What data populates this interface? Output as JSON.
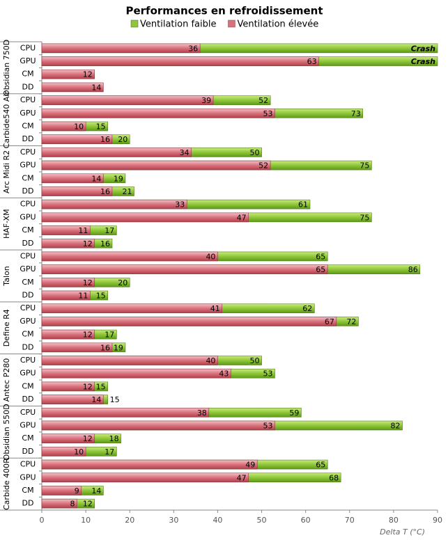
{
  "chart_data": {
    "type": "bar",
    "title": "Performances en refroidissement",
    "x_label": "Delta T (°C)",
    "groups": [
      "Obsidian 750D",
      "Carbide540 Air",
      "Arc Midi R2",
      "HAF-XM",
      "Talon",
      "Define R4",
      "Antec P280",
      "Obsidian 550D",
      "Carbide 400R"
    ],
    "categories": [
      "CPU",
      "GPU",
      "CM",
      "DD",
      "CPU",
      "GPU",
      "CM",
      "DD",
      "CPU",
      "GPU",
      "CM",
      "DD",
      "CPU",
      "GPU",
      "CM",
      "DD",
      "CPU",
      "GPU",
      "CM",
      "DD",
      "CPU",
      "GPU",
      "CM",
      "DD",
      "CPU",
      "GPU",
      "CM",
      "DD",
      "CPU",
      "GPU",
      "CM",
      "DD",
      "CPU",
      "GPU",
      "CM",
      "DD"
    ],
    "series": [
      {
        "name": "Ventilation faible",
        "color": "#8fc63a",
        "values": [
          null,
          null,
          null,
          null,
          52,
          73,
          15,
          20,
          50,
          75,
          19,
          21,
          61,
          75,
          17,
          16,
          65,
          86,
          20,
          15,
          62,
          72,
          17,
          19,
          50,
          53,
          15,
          15,
          59,
          82,
          18,
          17,
          65,
          68,
          14,
          12
        ],
        "value_labels": [
          "Crash",
          "Crash",
          null,
          null,
          null,
          null,
          null,
          null,
          null,
          null,
          null,
          null,
          null,
          null,
          null,
          null,
          null,
          null,
          null,
          null,
          null,
          null,
          null,
          null,
          null,
          null,
          null,
          null,
          null,
          null,
          null,
          null,
          null,
          null,
          null,
          null
        ]
      },
      {
        "name": "Ventilation élevée",
        "color": "#d9717c",
        "values": [
          36,
          63,
          12,
          14,
          39,
          53,
          10,
          16,
          34,
          52,
          14,
          16,
          33,
          47,
          11,
          12,
          40,
          65,
          12,
          11,
          41,
          67,
          12,
          16,
          40,
          43,
          12,
          14,
          38,
          53,
          12,
          10,
          49,
          47,
          9,
          8
        ]
      }
    ],
    "xlim": [
      0,
      90
    ],
    "xticks": [
      0,
      10,
      20,
      30,
      40,
      50,
      60,
      70,
      80,
      90
    ]
  }
}
